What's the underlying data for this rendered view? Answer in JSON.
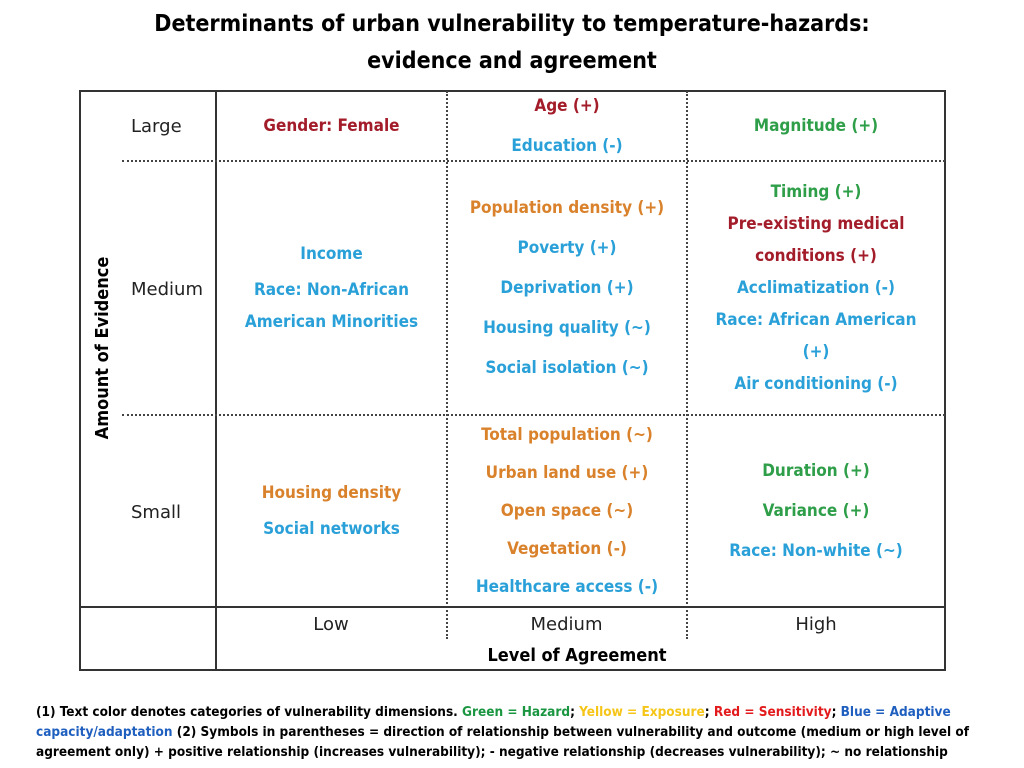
{
  "title": {
    "line1": "Determinants of urban vulnerability to temperature-hazards:",
    "line2": "evidence and agreement"
  },
  "colors": {
    "hazard": "#2e9e49",
    "exposure": "#d9822b",
    "sensitivity": "#a31c2a",
    "adaptive": "#2aa0d8"
  },
  "axes": {
    "y_label": "Amount of Evidence",
    "x_label": "Level of Agreement"
  },
  "rows": [
    "Large",
    "Medium",
    "Small"
  ],
  "columns": [
    "Low",
    "Medium",
    "High"
  ],
  "cells": {
    "large_low": [
      {
        "text": "Gender: Female",
        "category": "sensitivity"
      }
    ],
    "large_medium": [
      {
        "text": "Age (+)",
        "category": "sensitivity"
      },
      {
        "text": "Education (-)",
        "category": "adaptive"
      }
    ],
    "large_high": [
      {
        "text": "Magnitude (+)",
        "category": "hazard"
      }
    ],
    "medium_low": [
      {
        "text": "Income",
        "category": "adaptive"
      },
      {
        "text": "Race: Non-African American Minorities",
        "category": "adaptive"
      }
    ],
    "medium_medium": [
      {
        "text": "Population density (+)",
        "category": "exposure"
      },
      {
        "text": "Poverty (+)",
        "category": "adaptive"
      },
      {
        "text": "Deprivation (+)",
        "category": "adaptive"
      },
      {
        "text": "Housing quality (~)",
        "category": "adaptive"
      },
      {
        "text": "Social isolation (~)",
        "category": "adaptive"
      }
    ],
    "medium_high": [
      {
        "text": "Timing (+)",
        "category": "hazard"
      },
      {
        "text": "Pre-existing medical conditions (+)",
        "category": "sensitivity"
      },
      {
        "text": "Acclimatization (-)",
        "category": "adaptive"
      },
      {
        "text": "Race: African American (+)",
        "category": "adaptive"
      },
      {
        "text": "Air conditioning (-)",
        "category": "adaptive"
      }
    ],
    "small_low": [
      {
        "text": "Housing density",
        "category": "exposure"
      },
      {
        "text": "Social networks",
        "category": "adaptive"
      }
    ],
    "small_medium": [
      {
        "text": "Total population (~)",
        "category": "exposure"
      },
      {
        "text": "Urban land use (+)",
        "category": "exposure"
      },
      {
        "text": "Open space (~)",
        "category": "exposure"
      },
      {
        "text": "Vegetation (-)",
        "category": "exposure"
      },
      {
        "text": "Healthcare access (-)",
        "category": "adaptive"
      }
    ],
    "small_high": [
      {
        "text": "Duration (+)",
        "category": "hazard"
      },
      {
        "text": "Variance (+)",
        "category": "hazard"
      },
      {
        "text": "Race: Non-white (~)",
        "category": "adaptive"
      }
    ]
  },
  "footnote": {
    "part1": "(1) Text color denotes categories of vulnerability dimensions. ",
    "green": "Green = Hazard",
    "sep1": "; ",
    "yellow": "Yellow = Exposure",
    "sep2": "; ",
    "red": "Red = Sensitivity",
    "sep3": "; ",
    "blue": "Blue = Adaptive capacity/adaptation",
    "part2": " (2) Symbols in parentheses = direction of relationship between vulnerability  and outcome (medium or high level of agreement only) +  positive relationship (increases vulnerability); -  negative relationship (decreases vulnerability); ~ no relationship"
  }
}
